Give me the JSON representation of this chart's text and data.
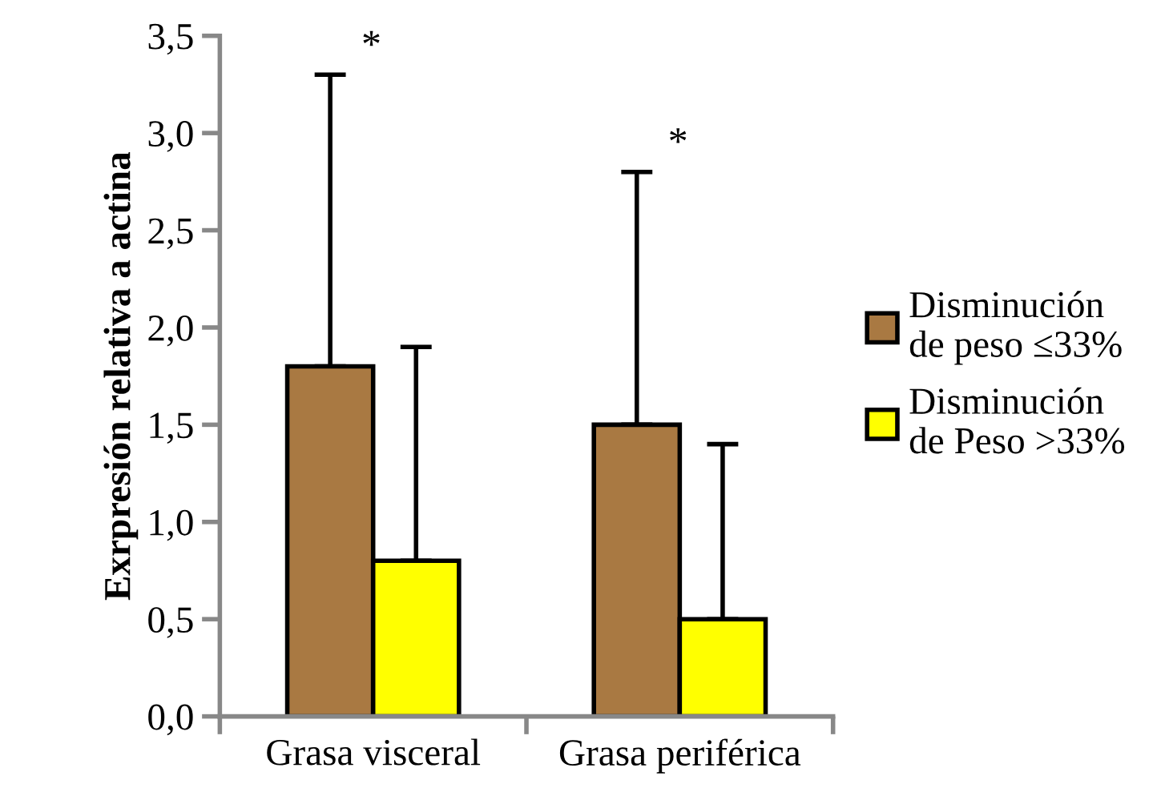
{
  "chart_data": {
    "type": "bar",
    "ylabel": "Exrpresión relativa a actina",
    "categories": [
      "Grasa visceral",
      "Grasa periférica"
    ],
    "series": [
      {
        "name": "Disminución de peso ≤33%",
        "color": "#a97942",
        "values": [
          1.8,
          1.5
        ],
        "errors": [
          [
            1.8,
            3.3
          ],
          [
            1.5,
            2.8
          ]
        ]
      },
      {
        "name": "Disminución de Peso >33%",
        "color": "#ffff00",
        "values": [
          0.8,
          0.5
        ],
        "errors": [
          [
            0.8,
            1.9
          ],
          [
            0.5,
            1.4
          ]
        ]
      }
    ],
    "annotations": [
      "*",
      "*"
    ],
    "ylim": [
      0,
      3.5
    ],
    "yticks": [
      {
        "value": 0,
        "label": "0,0"
      },
      {
        "value": 0.5,
        "label": "0,5"
      },
      {
        "value": 1,
        "label": "1,0"
      },
      {
        "value": 1.5,
        "label": "1,5"
      },
      {
        "value": 2,
        "label": "2,0"
      },
      {
        "value": 2.5,
        "label": "2,5"
      },
      {
        "value": 3,
        "label": "3,0"
      },
      {
        "value": 3.5,
        "label": "3,5"
      }
    ],
    "legend": "right",
    "grid": false
  }
}
